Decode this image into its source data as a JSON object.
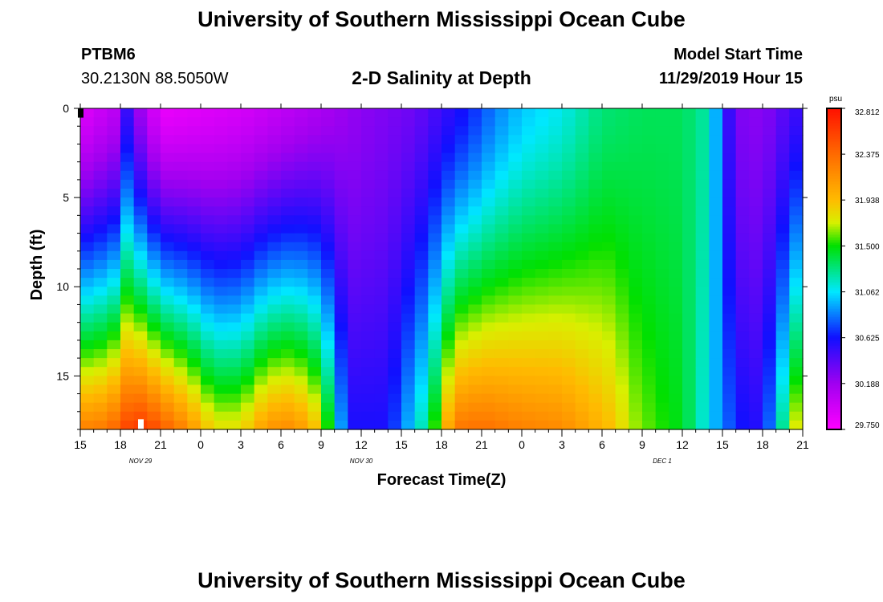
{
  "page": {
    "title_top": "University of Southern Mississippi Ocean Cube",
    "title_bottom": "University of Southern Mississippi Ocean Cube",
    "station_id": "PTBM6",
    "station_coords": "30.2130N 88.5050W",
    "model_label": "Model Start Time",
    "model_time": "11/29/2019 Hour 15"
  },
  "chart_data": {
    "type": "heatmap",
    "title": "2-D Salinity at Depth",
    "xlabel": "Forecast Time(Z)",
    "ylabel": "Depth (ft)",
    "x_range_hours": [
      0,
      54
    ],
    "y_range_ft": [
      0,
      18
    ],
    "y_reversed": true,
    "x_ticks": [
      {
        "h": 0,
        "label": "15"
      },
      {
        "h": 3,
        "label": "18"
      },
      {
        "h": 6,
        "label": "21"
      },
      {
        "h": 9,
        "label": "0"
      },
      {
        "h": 12,
        "label": "3"
      },
      {
        "h": 15,
        "label": "6"
      },
      {
        "h": 18,
        "label": "9"
      },
      {
        "h": 21,
        "label": "12"
      },
      {
        "h": 24,
        "label": "15"
      },
      {
        "h": 27,
        "label": "18"
      },
      {
        "h": 30,
        "label": "21"
      },
      {
        "h": 33,
        "label": "0"
      },
      {
        "h": 36,
        "label": "3"
      },
      {
        "h": 39,
        "label": "6"
      },
      {
        "h": 42,
        "label": "9"
      },
      {
        "h": 45,
        "label": "12"
      },
      {
        "h": 48,
        "label": "15"
      },
      {
        "h": 51,
        "label": "18"
      },
      {
        "h": 54,
        "label": "21"
      }
    ],
    "date_labels": [
      {
        "h": 4.5,
        "label": "NOV 29"
      },
      {
        "h": 21,
        "label": "NOV 30"
      },
      {
        "h": 43.5,
        "label": "DEC 1"
      }
    ],
    "y_ticks": [
      {
        "v": 0,
        "label": "0"
      },
      {
        "v": 5,
        "label": "5"
      },
      {
        "v": 10,
        "label": "10"
      },
      {
        "v": 15,
        "label": "15"
      }
    ],
    "colorbar": {
      "unit": "psu",
      "min": 29.75,
      "max": 32.812,
      "tick_labels": [
        "32.812",
        "32.375",
        "31.938",
        "31.500",
        "31.062",
        "30.625",
        "30.188",
        "29.750"
      ],
      "stops": [
        {
          "v": 29.75,
          "c": "#ff00ff"
        },
        {
          "v": 30.188,
          "c": "#a000f0"
        },
        {
          "v": 30.625,
          "c": "#1010ff"
        },
        {
          "v": 31.062,
          "c": "#00e8ff"
        },
        {
          "v": 31.5,
          "c": "#00e000"
        },
        {
          "v": 31.72,
          "c": "#d8f000"
        },
        {
          "v": 31.938,
          "c": "#ffbb00"
        },
        {
          "v": 32.375,
          "c": "#ff6a00"
        },
        {
          "v": 32.812,
          "c": "#ff1000"
        }
      ]
    },
    "surface_profile": [
      [
        0,
        29.9
      ],
      [
        3,
        30.1
      ],
      [
        4,
        30.9
      ],
      [
        4.5,
        30.2
      ],
      [
        6,
        29.85
      ],
      [
        9,
        29.9
      ],
      [
        12,
        29.95
      ],
      [
        15,
        30.05
      ],
      [
        18,
        30.15
      ],
      [
        21,
        30.25
      ],
      [
        25,
        30.35
      ],
      [
        29,
        30.65
      ],
      [
        31,
        30.85
      ],
      [
        33,
        31.0
      ],
      [
        36,
        31.1
      ],
      [
        39,
        31.3
      ],
      [
        42,
        31.35
      ],
      [
        45,
        31.35
      ],
      [
        47,
        31.2
      ],
      [
        48,
        30.7
      ],
      [
        49,
        30.3
      ],
      [
        51,
        30.25
      ],
      [
        54,
        30.55
      ]
    ],
    "bottom_profile": [
      [
        0,
        32.25
      ],
      [
        2,
        32.3
      ],
      [
        4,
        32.65
      ],
      [
        5,
        32.6
      ],
      [
        8,
        32.2
      ],
      [
        10,
        31.8
      ],
      [
        12,
        31.8
      ],
      [
        14,
        32.15
      ],
      [
        16,
        32.2
      ],
      [
        18,
        31.85
      ],
      [
        20,
        30.6
      ],
      [
        23,
        30.6
      ],
      [
        26,
        31.3
      ],
      [
        28,
        32.3
      ],
      [
        30,
        32.35
      ],
      [
        33,
        32.25
      ],
      [
        36,
        32.2
      ],
      [
        40,
        31.9
      ],
      [
        41,
        31.7
      ],
      [
        43,
        31.55
      ],
      [
        45,
        31.45
      ],
      [
        47,
        31.05
      ],
      [
        48,
        30.85
      ],
      [
        50,
        30.55
      ],
      [
        51,
        30.6
      ],
      [
        52,
        31.0
      ],
      [
        53,
        31.5
      ],
      [
        54,
        32.0
      ]
    ],
    "markers": [
      {
        "h": 0,
        "v": 0.25,
        "color": "#000000"
      },
      {
        "h": 4.5,
        "v": 17.7,
        "color": "#ffffff"
      }
    ]
  }
}
